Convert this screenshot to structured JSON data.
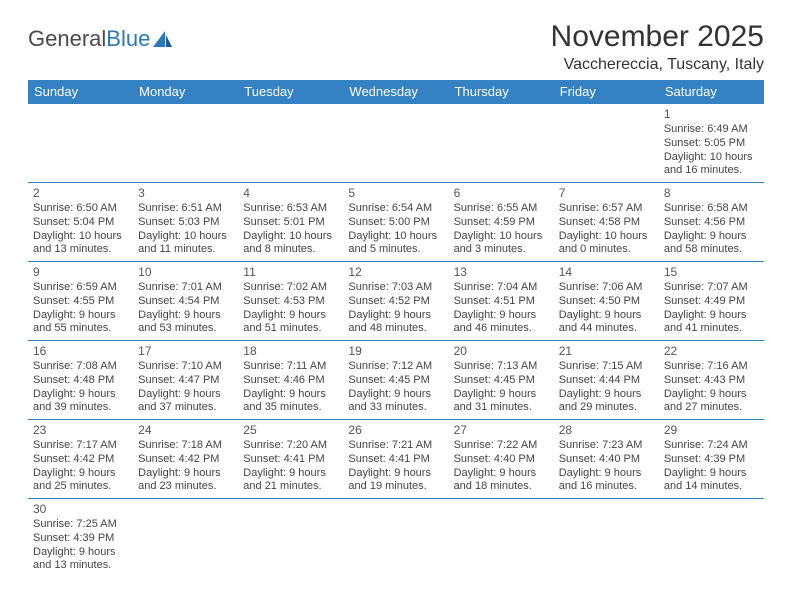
{
  "brand": {
    "name1": "General",
    "name2": "Blue"
  },
  "title": "November 2025",
  "location": "Vacchereccia, Tuscany, Italy",
  "colors": {
    "header_bg": "#3481c4",
    "header_text": "#ffffff",
    "cell_border": "#3481c4",
    "body_text": "#444444",
    "title_text": "#333333"
  },
  "weekdays": [
    "Sunday",
    "Monday",
    "Tuesday",
    "Wednesday",
    "Thursday",
    "Friday",
    "Saturday"
  ],
  "first_day_index": 6,
  "days": [
    {
      "n": 1,
      "sunrise": "6:49 AM",
      "sunset": "5:05 PM",
      "daylight": "10 hours and 16 minutes."
    },
    {
      "n": 2,
      "sunrise": "6:50 AM",
      "sunset": "5:04 PM",
      "daylight": "10 hours and 13 minutes."
    },
    {
      "n": 3,
      "sunrise": "6:51 AM",
      "sunset": "5:03 PM",
      "daylight": "10 hours and 11 minutes."
    },
    {
      "n": 4,
      "sunrise": "6:53 AM",
      "sunset": "5:01 PM",
      "daylight": "10 hours and 8 minutes."
    },
    {
      "n": 5,
      "sunrise": "6:54 AM",
      "sunset": "5:00 PM",
      "daylight": "10 hours and 5 minutes."
    },
    {
      "n": 6,
      "sunrise": "6:55 AM",
      "sunset": "4:59 PM",
      "daylight": "10 hours and 3 minutes."
    },
    {
      "n": 7,
      "sunrise": "6:57 AM",
      "sunset": "4:58 PM",
      "daylight": "10 hours and 0 minutes."
    },
    {
      "n": 8,
      "sunrise": "6:58 AM",
      "sunset": "4:56 PM",
      "daylight": "9 hours and 58 minutes."
    },
    {
      "n": 9,
      "sunrise": "6:59 AM",
      "sunset": "4:55 PM",
      "daylight": "9 hours and 55 minutes."
    },
    {
      "n": 10,
      "sunrise": "7:01 AM",
      "sunset": "4:54 PM",
      "daylight": "9 hours and 53 minutes."
    },
    {
      "n": 11,
      "sunrise": "7:02 AM",
      "sunset": "4:53 PM",
      "daylight": "9 hours and 51 minutes."
    },
    {
      "n": 12,
      "sunrise": "7:03 AM",
      "sunset": "4:52 PM",
      "daylight": "9 hours and 48 minutes."
    },
    {
      "n": 13,
      "sunrise": "7:04 AM",
      "sunset": "4:51 PM",
      "daylight": "9 hours and 46 minutes."
    },
    {
      "n": 14,
      "sunrise": "7:06 AM",
      "sunset": "4:50 PM",
      "daylight": "9 hours and 44 minutes."
    },
    {
      "n": 15,
      "sunrise": "7:07 AM",
      "sunset": "4:49 PM",
      "daylight": "9 hours and 41 minutes."
    },
    {
      "n": 16,
      "sunrise": "7:08 AM",
      "sunset": "4:48 PM",
      "daylight": "9 hours and 39 minutes."
    },
    {
      "n": 17,
      "sunrise": "7:10 AM",
      "sunset": "4:47 PM",
      "daylight": "9 hours and 37 minutes."
    },
    {
      "n": 18,
      "sunrise": "7:11 AM",
      "sunset": "4:46 PM",
      "daylight": "9 hours and 35 minutes."
    },
    {
      "n": 19,
      "sunrise": "7:12 AM",
      "sunset": "4:45 PM",
      "daylight": "9 hours and 33 minutes."
    },
    {
      "n": 20,
      "sunrise": "7:13 AM",
      "sunset": "4:45 PM",
      "daylight": "9 hours and 31 minutes."
    },
    {
      "n": 21,
      "sunrise": "7:15 AM",
      "sunset": "4:44 PM",
      "daylight": "9 hours and 29 minutes."
    },
    {
      "n": 22,
      "sunrise": "7:16 AM",
      "sunset": "4:43 PM",
      "daylight": "9 hours and 27 minutes."
    },
    {
      "n": 23,
      "sunrise": "7:17 AM",
      "sunset": "4:42 PM",
      "daylight": "9 hours and 25 minutes."
    },
    {
      "n": 24,
      "sunrise": "7:18 AM",
      "sunset": "4:42 PM",
      "daylight": "9 hours and 23 minutes."
    },
    {
      "n": 25,
      "sunrise": "7:20 AM",
      "sunset": "4:41 PM",
      "daylight": "9 hours and 21 minutes."
    },
    {
      "n": 26,
      "sunrise": "7:21 AM",
      "sunset": "4:41 PM",
      "daylight": "9 hours and 19 minutes."
    },
    {
      "n": 27,
      "sunrise": "7:22 AM",
      "sunset": "4:40 PM",
      "daylight": "9 hours and 18 minutes."
    },
    {
      "n": 28,
      "sunrise": "7:23 AM",
      "sunset": "4:40 PM",
      "daylight": "9 hours and 16 minutes."
    },
    {
      "n": 29,
      "sunrise": "7:24 AM",
      "sunset": "4:39 PM",
      "daylight": "9 hours and 14 minutes."
    },
    {
      "n": 30,
      "sunrise": "7:25 AM",
      "sunset": "4:39 PM",
      "daylight": "9 hours and 13 minutes."
    }
  ],
  "labels": {
    "sunrise": "Sunrise:",
    "sunset": "Sunset:",
    "daylight": "Daylight:"
  }
}
